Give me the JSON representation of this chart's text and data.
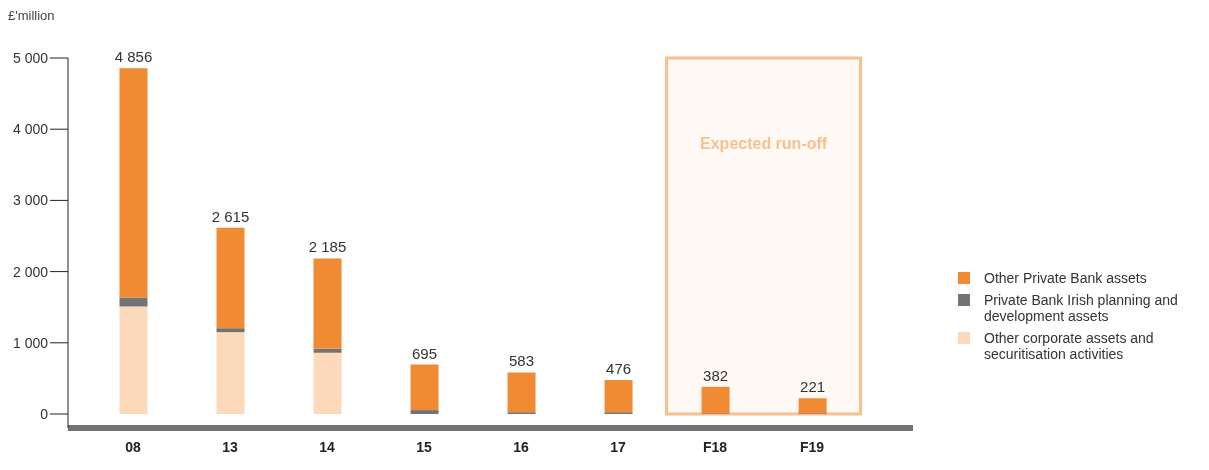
{
  "chart_data": {
    "type": "bar",
    "stacked": true,
    "ylabel": "£'million",
    "categories": [
      "08",
      "13",
      "14",
      "15",
      "16",
      "17",
      "F18",
      "F19"
    ],
    "series": [
      {
        "name": "Other corporate assets and securitisation activities",
        "color": "#fcd9bb",
        "values": [
          1510,
          1150,
          860,
          0,
          0,
          0,
          0,
          0
        ]
      },
      {
        "name": "Private Bank Irish planning and development assets",
        "color": "#737373",
        "values": [
          125,
          55,
          55,
          55,
          25,
          25,
          10,
          10
        ]
      },
      {
        "name": "Other Private Bank assets",
        "color": "#f08a33",
        "values": [
          3221,
          1410,
          1270,
          640,
          558,
          451,
          372,
          211
        ]
      }
    ],
    "totals": [
      "4 856",
      "2 615",
      "2 185",
      "695",
      "583",
      "476",
      "382",
      "221"
    ],
    "ylim": [
      0,
      5000
    ],
    "yticks": [
      0,
      {
        "value": 1000,
        "label": "1 000"
      },
      {
        "value": 2000,
        "label": "2 000"
      },
      {
        "value": 3000,
        "label": "3 000"
      },
      {
        "value": 4000,
        "label": "4 000"
      },
      {
        "value": 5000,
        "label": "5 000"
      }
    ],
    "bands": [
      {
        "axis": "x",
        "from": "F18",
        "to": "F19",
        "label": "Expected run-off",
        "color": "#f9c08f"
      }
    ],
    "legend": "right"
  }
}
